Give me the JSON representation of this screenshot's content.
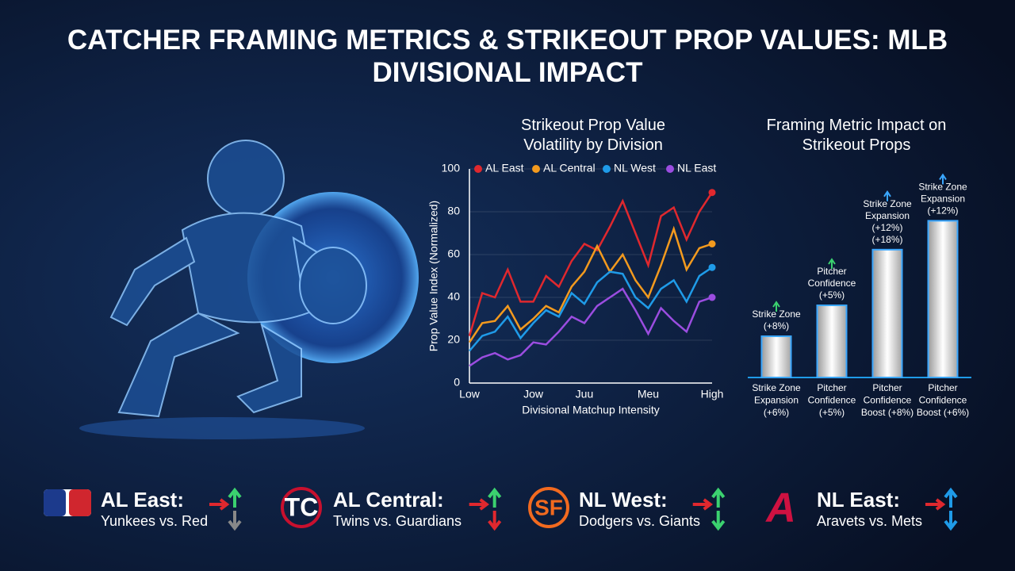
{
  "title": "CATCHER FRAMING METRICS & STRIKEOUT PROP VALUES: MLB DIVISIONAL IMPACT",
  "chart_data": [
    {
      "type": "line",
      "title": "Strikeout Prop Value Volatility by Division",
      "x_label": "Divisional Matchup Intensity",
      "y_label": "Prop Value Index (Normalized)",
      "categories": [
        "Low",
        null,
        null,
        null,
        null,
        "Jow",
        null,
        null,
        null,
        "Juu",
        null,
        null,
        null,
        null,
        "Meu",
        null,
        null,
        null,
        null,
        "High"
      ],
      "ylim": [
        0,
        100
      ],
      "yticks": [
        0,
        20,
        40,
        60,
        80,
        100
      ],
      "grid": true,
      "legend": "top",
      "series": [
        {
          "name": "AL East",
          "color": "#e0282e",
          "values": [
            22,
            42,
            40,
            53,
            38,
            38,
            50,
            45,
            57,
            65,
            62,
            73,
            85,
            70,
            55,
            78,
            82,
            67,
            80,
            89
          ]
        },
        {
          "name": "AL Central",
          "color": "#f39a1e",
          "values": [
            19,
            28,
            29,
            36,
            25,
            30,
            36,
            33,
            45,
            52,
            64,
            52,
            60,
            48,
            40,
            55,
            72,
            53,
            63,
            65
          ]
        },
        {
          "name": "NL West",
          "color": "#1f9be8",
          "values": [
            15,
            22,
            24,
            31,
            21,
            28,
            34,
            31,
            42,
            37,
            47,
            52,
            51,
            40,
            35,
            44,
            48,
            38,
            50,
            54
          ]
        },
        {
          "name": "NL East",
          "color": "#9b4de0",
          "values": [
            8,
            12,
            14,
            11,
            13,
            19,
            18,
            24,
            31,
            28,
            36,
            40,
            44,
            34,
            23,
            35,
            29,
            24,
            38,
            40
          ]
        }
      ]
    },
    {
      "type": "bar",
      "title": "Framing Metric Impact on Strikeout Props",
      "categories": [
        [
          "Strike Zone",
          "Expansion",
          "(+6%)"
        ],
        [
          "Pitcher",
          "Confidence",
          "(+5%)"
        ],
        [
          "Pitcher",
          "Confidence",
          "Boost (+8%)"
        ],
        [
          "Pitcher",
          "Confidence",
          "Boost (+6%)"
        ]
      ],
      "values": [
        20,
        35,
        62,
        76
      ],
      "annotations": [
        [
          "Strike Zone",
          "(+8%)"
        ],
        [
          "Pitcher",
          "Confidence",
          "(+5%)"
        ],
        [
          "Strike Zone",
          "Expansion",
          "(+12%)",
          "(+18%)"
        ],
        [
          "Strike Zone",
          "Expansion",
          "(+12%)"
        ]
      ],
      "color": "#e6e6e6"
    }
  ],
  "divisions": [
    {
      "name": "AL East:",
      "matchup": "Yunkees vs. Red"
    },
    {
      "name": "AL Central:",
      "matchup": "Twins vs. Guardians"
    },
    {
      "name": "NL West:",
      "matchup": "Dodgers vs. Giants"
    },
    {
      "name": "NL East:",
      "matchup": "Aravets vs. Mets"
    }
  ]
}
